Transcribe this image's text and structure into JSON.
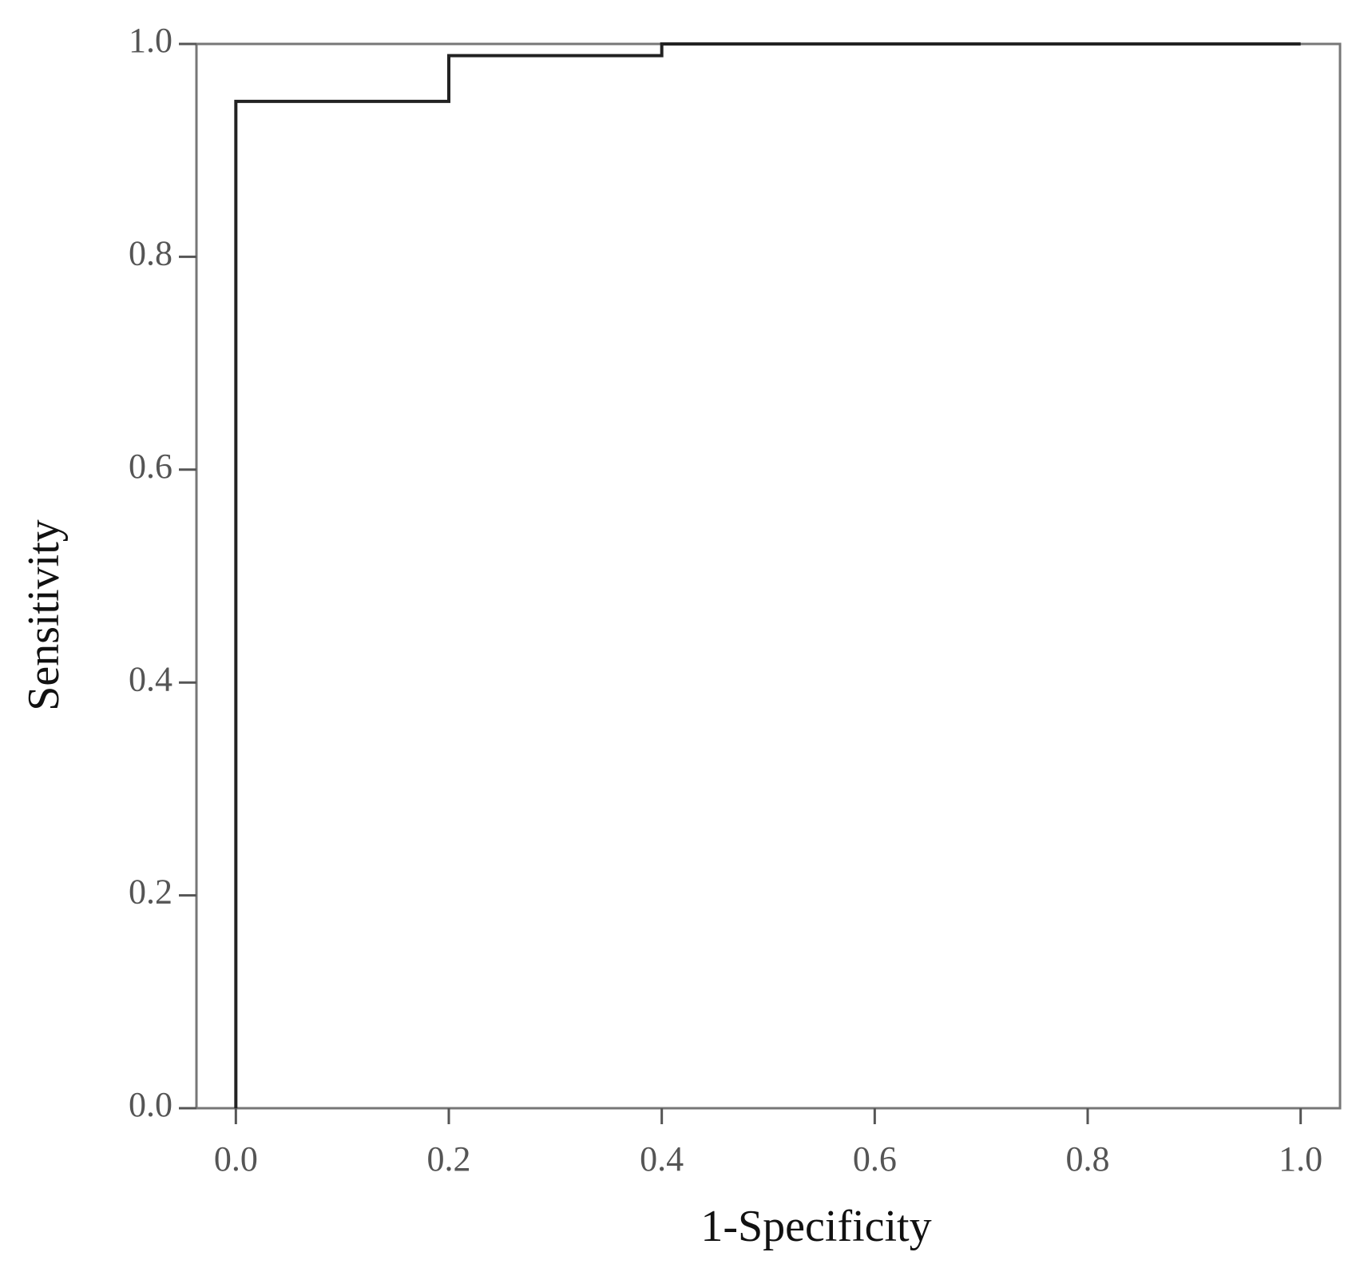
{
  "chart_data": {
    "type": "line",
    "xlabel": "1-Specificity",
    "ylabel": "Sensitivity",
    "x": [
      0,
      0,
      0.2,
      0.2,
      0.4,
      0.4,
      1
    ],
    "values": [
      0,
      0.946,
      0.946,
      0.989,
      0.989,
      1,
      1
    ],
    "color": "#222222",
    "xlim": [
      -0.037,
      1.037
    ],
    "ylim": [
      0,
      1
    ],
    "xticks": [
      {
        "value": 0,
        "label": "0.0"
      },
      0.2,
      0.4,
      0.6,
      0.8,
      {
        "value": 1,
        "label": "1.0"
      }
    ],
    "yticks": [
      {
        "value": 0,
        "label": "0.0"
      },
      0.2,
      0.4,
      0.6,
      0.8,
      {
        "value": 1,
        "label": "1.0"
      }
    ]
  }
}
